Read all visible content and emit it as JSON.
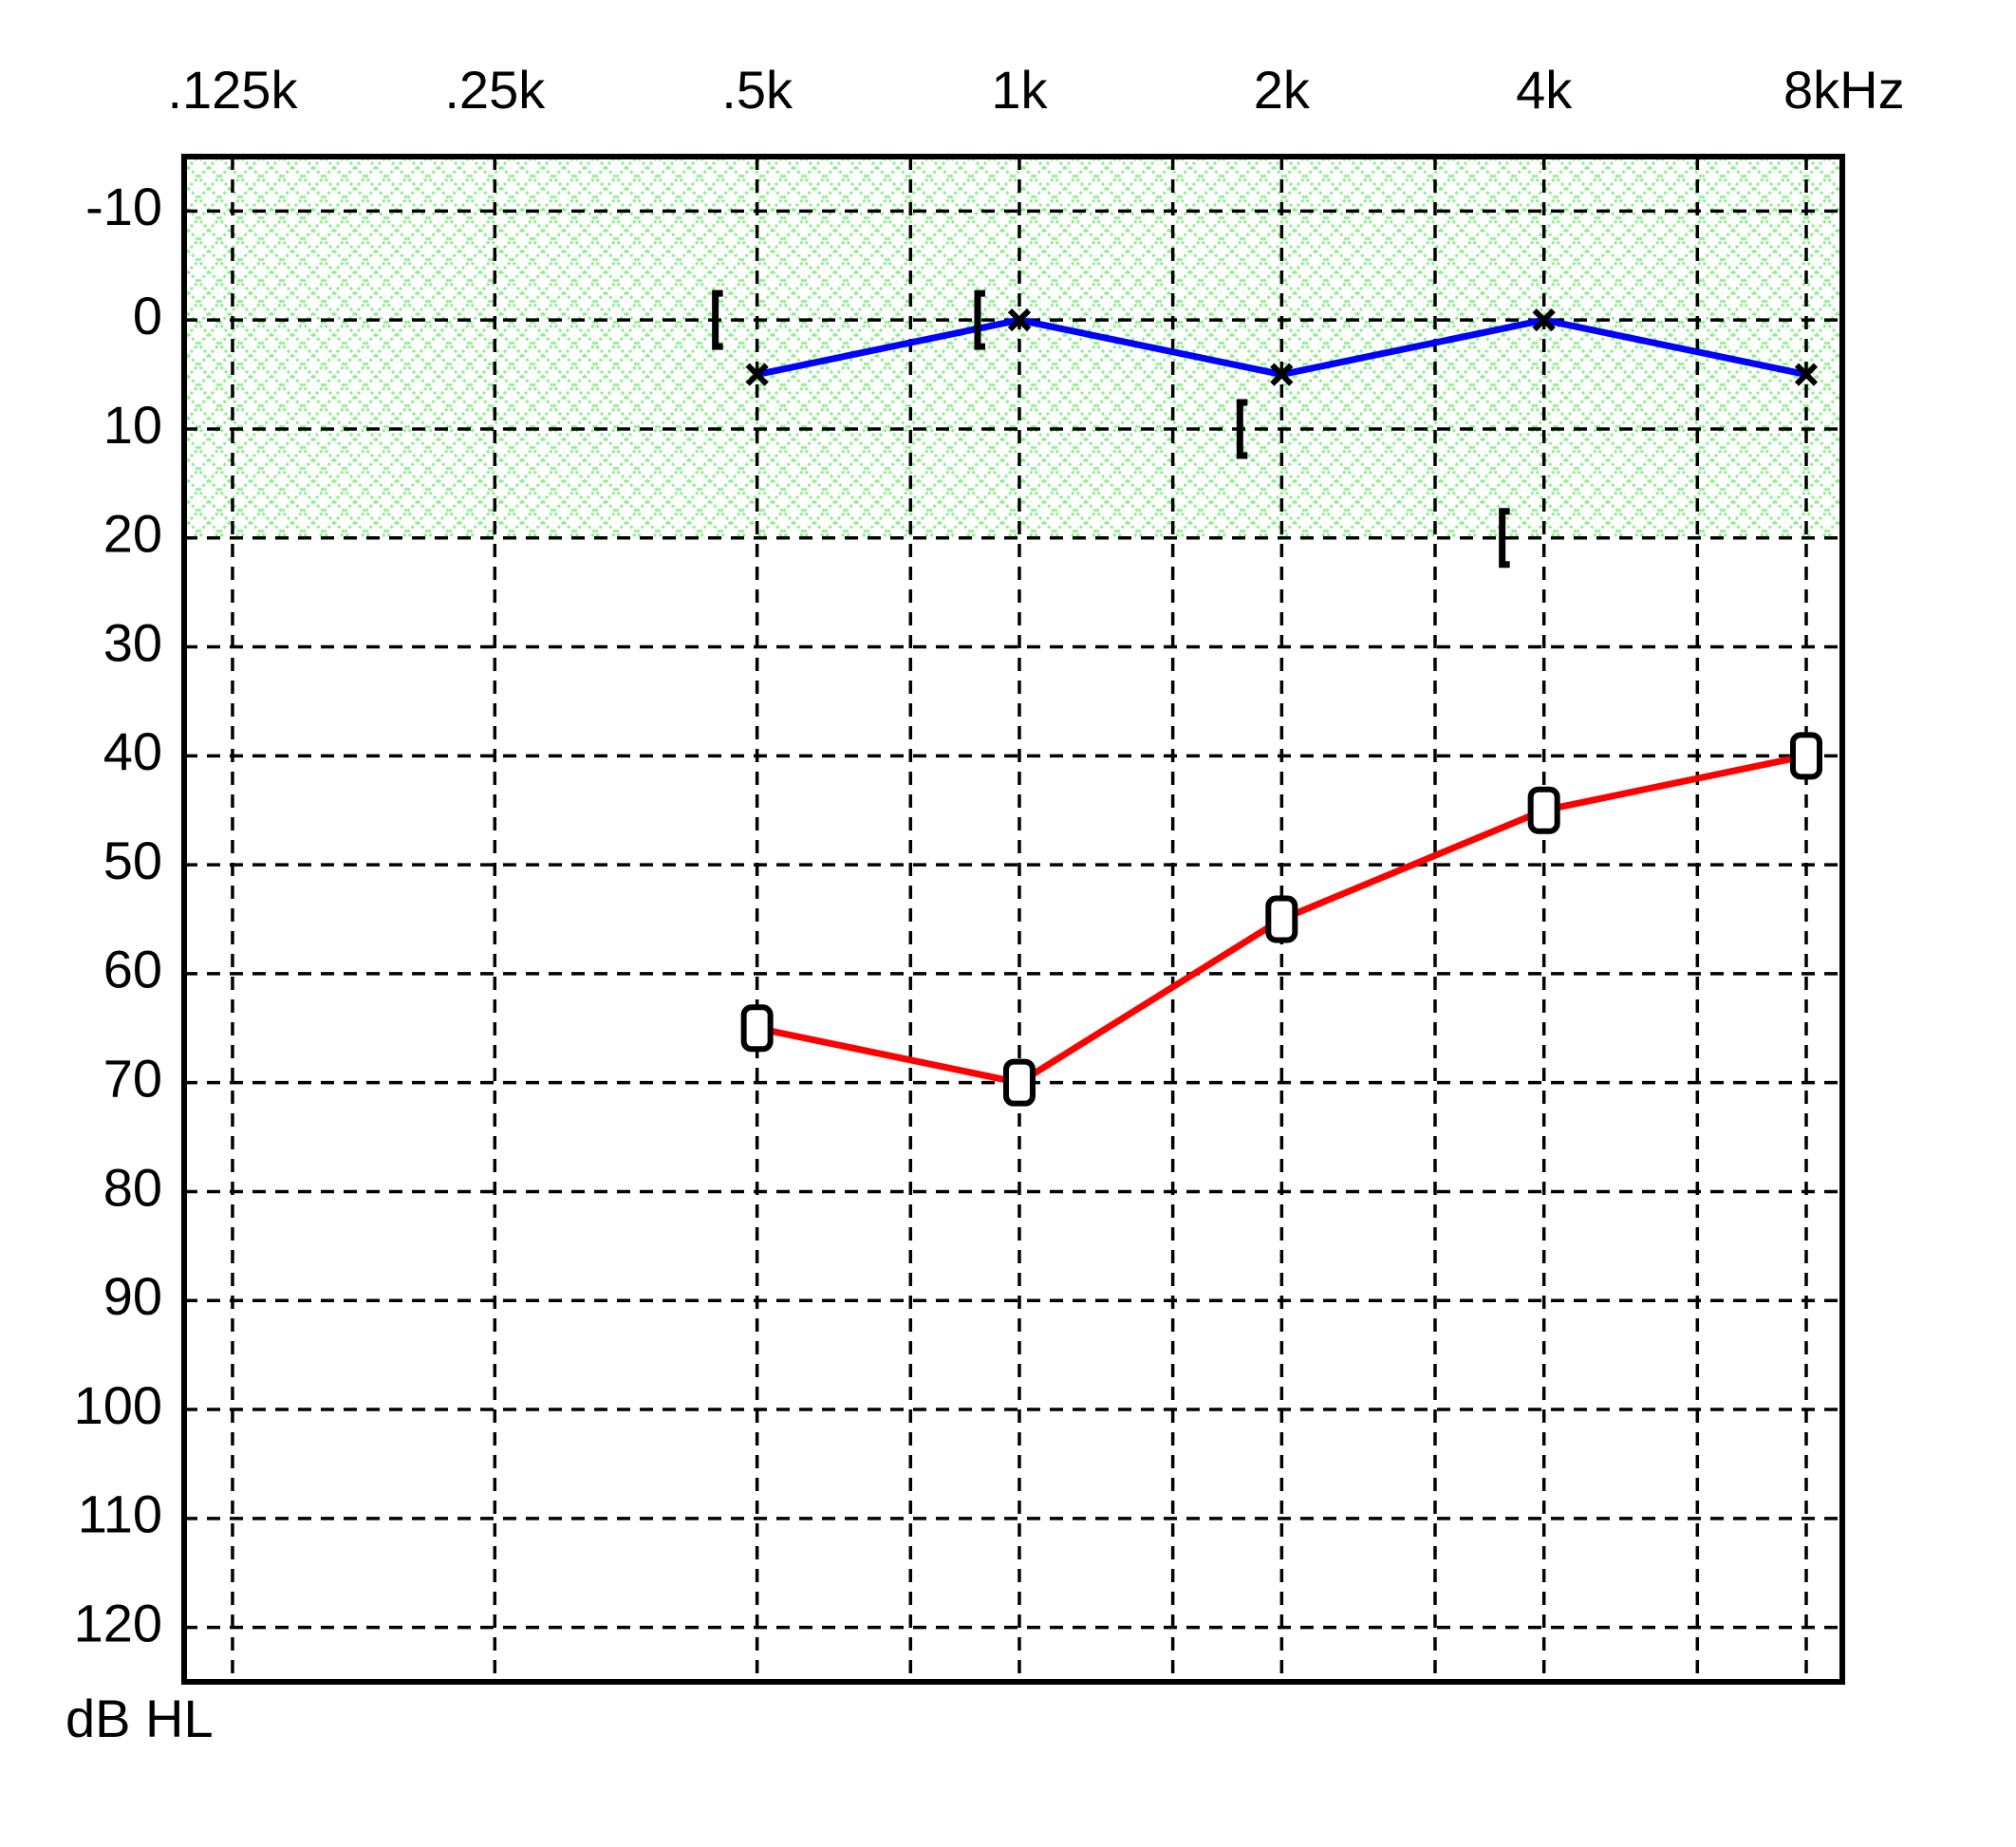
{
  "chart_data": {
    "type": "audiogram",
    "x": [
      0.5,
      1,
      2,
      4,
      8
    ],
    "xlim": [
      0.11,
      8.8
    ],
    "log_x": true,
    "xticks": [
      {
        "value": 0.125,
        "label": ".125k"
      },
      {
        "value": 0.25,
        "label": ".25k"
      },
      {
        "value": 0.5,
        "label": ".5k"
      },
      {
        "value": 1,
        "label": "1k"
      },
      {
        "value": 2,
        "label": "2k"
      },
      {
        "value": 4,
        "label": "4k"
      },
      {
        "value": 8,
        "label": "8kHz"
      }
    ],
    "minor_xticks": [
      0.75,
      1.5,
      3,
      6
    ],
    "ylim": [
      -15,
      125
    ],
    "y_inverted": true,
    "yticks": [
      -10,
      0,
      10,
      20,
      30,
      40,
      50,
      60,
      70,
      80,
      90,
      100,
      110,
      120
    ],
    "y_label": "dB HL",
    "grid": true,
    "normal_limit": 20,
    "normal_color": "#90ee90",
    "series": [
      {
        "marker": "o",
        "line": true,
        "color": "#ff0000",
        "marker_color": "#000000",
        "values": [
          65,
          70,
          55,
          45,
          40
        ]
      },
      {
        "marker": "x",
        "line": true,
        "color": "#0000ff",
        "marker_color": "#000000",
        "values": [
          5,
          0,
          5,
          0,
          5
        ]
      },
      {
        "marker": "[",
        "line": false,
        "color": "#000000",
        "marker_color": "#000000",
        "values": [
          0,
          0,
          10,
          20,
          null
        ]
      }
    ]
  }
}
